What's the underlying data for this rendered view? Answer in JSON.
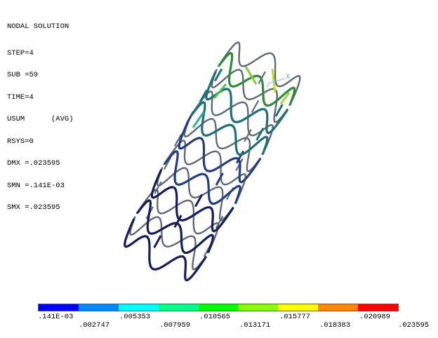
{
  "info": {
    "title": "NODAL SOLUTION",
    "lines": [
      "STEP=4",
      "SUB =59",
      "TIME=4",
      "USUM      (AVG)",
      "RSYS=0",
      "DMX =.023595",
      "SMN =.141E-03",
      "SMX =.023595"
    ]
  },
  "triad": {
    "x_label": "X"
  },
  "legend": {
    "colors": [
      "#0000ff",
      "#0088ff",
      "#00ffff",
      "#00ff88",
      "#00ff00",
      "#88ff00",
      "#ffff00",
      "#ff8800",
      "#ff0000"
    ],
    "labels_top": [
      ".141E-03",
      ".005353",
      ".010565",
      ".015777",
      ".020989"
    ],
    "labels_bottom": [
      ".002747",
      ".007959",
      ".013171",
      ".018383",
      ".023595"
    ]
  }
}
